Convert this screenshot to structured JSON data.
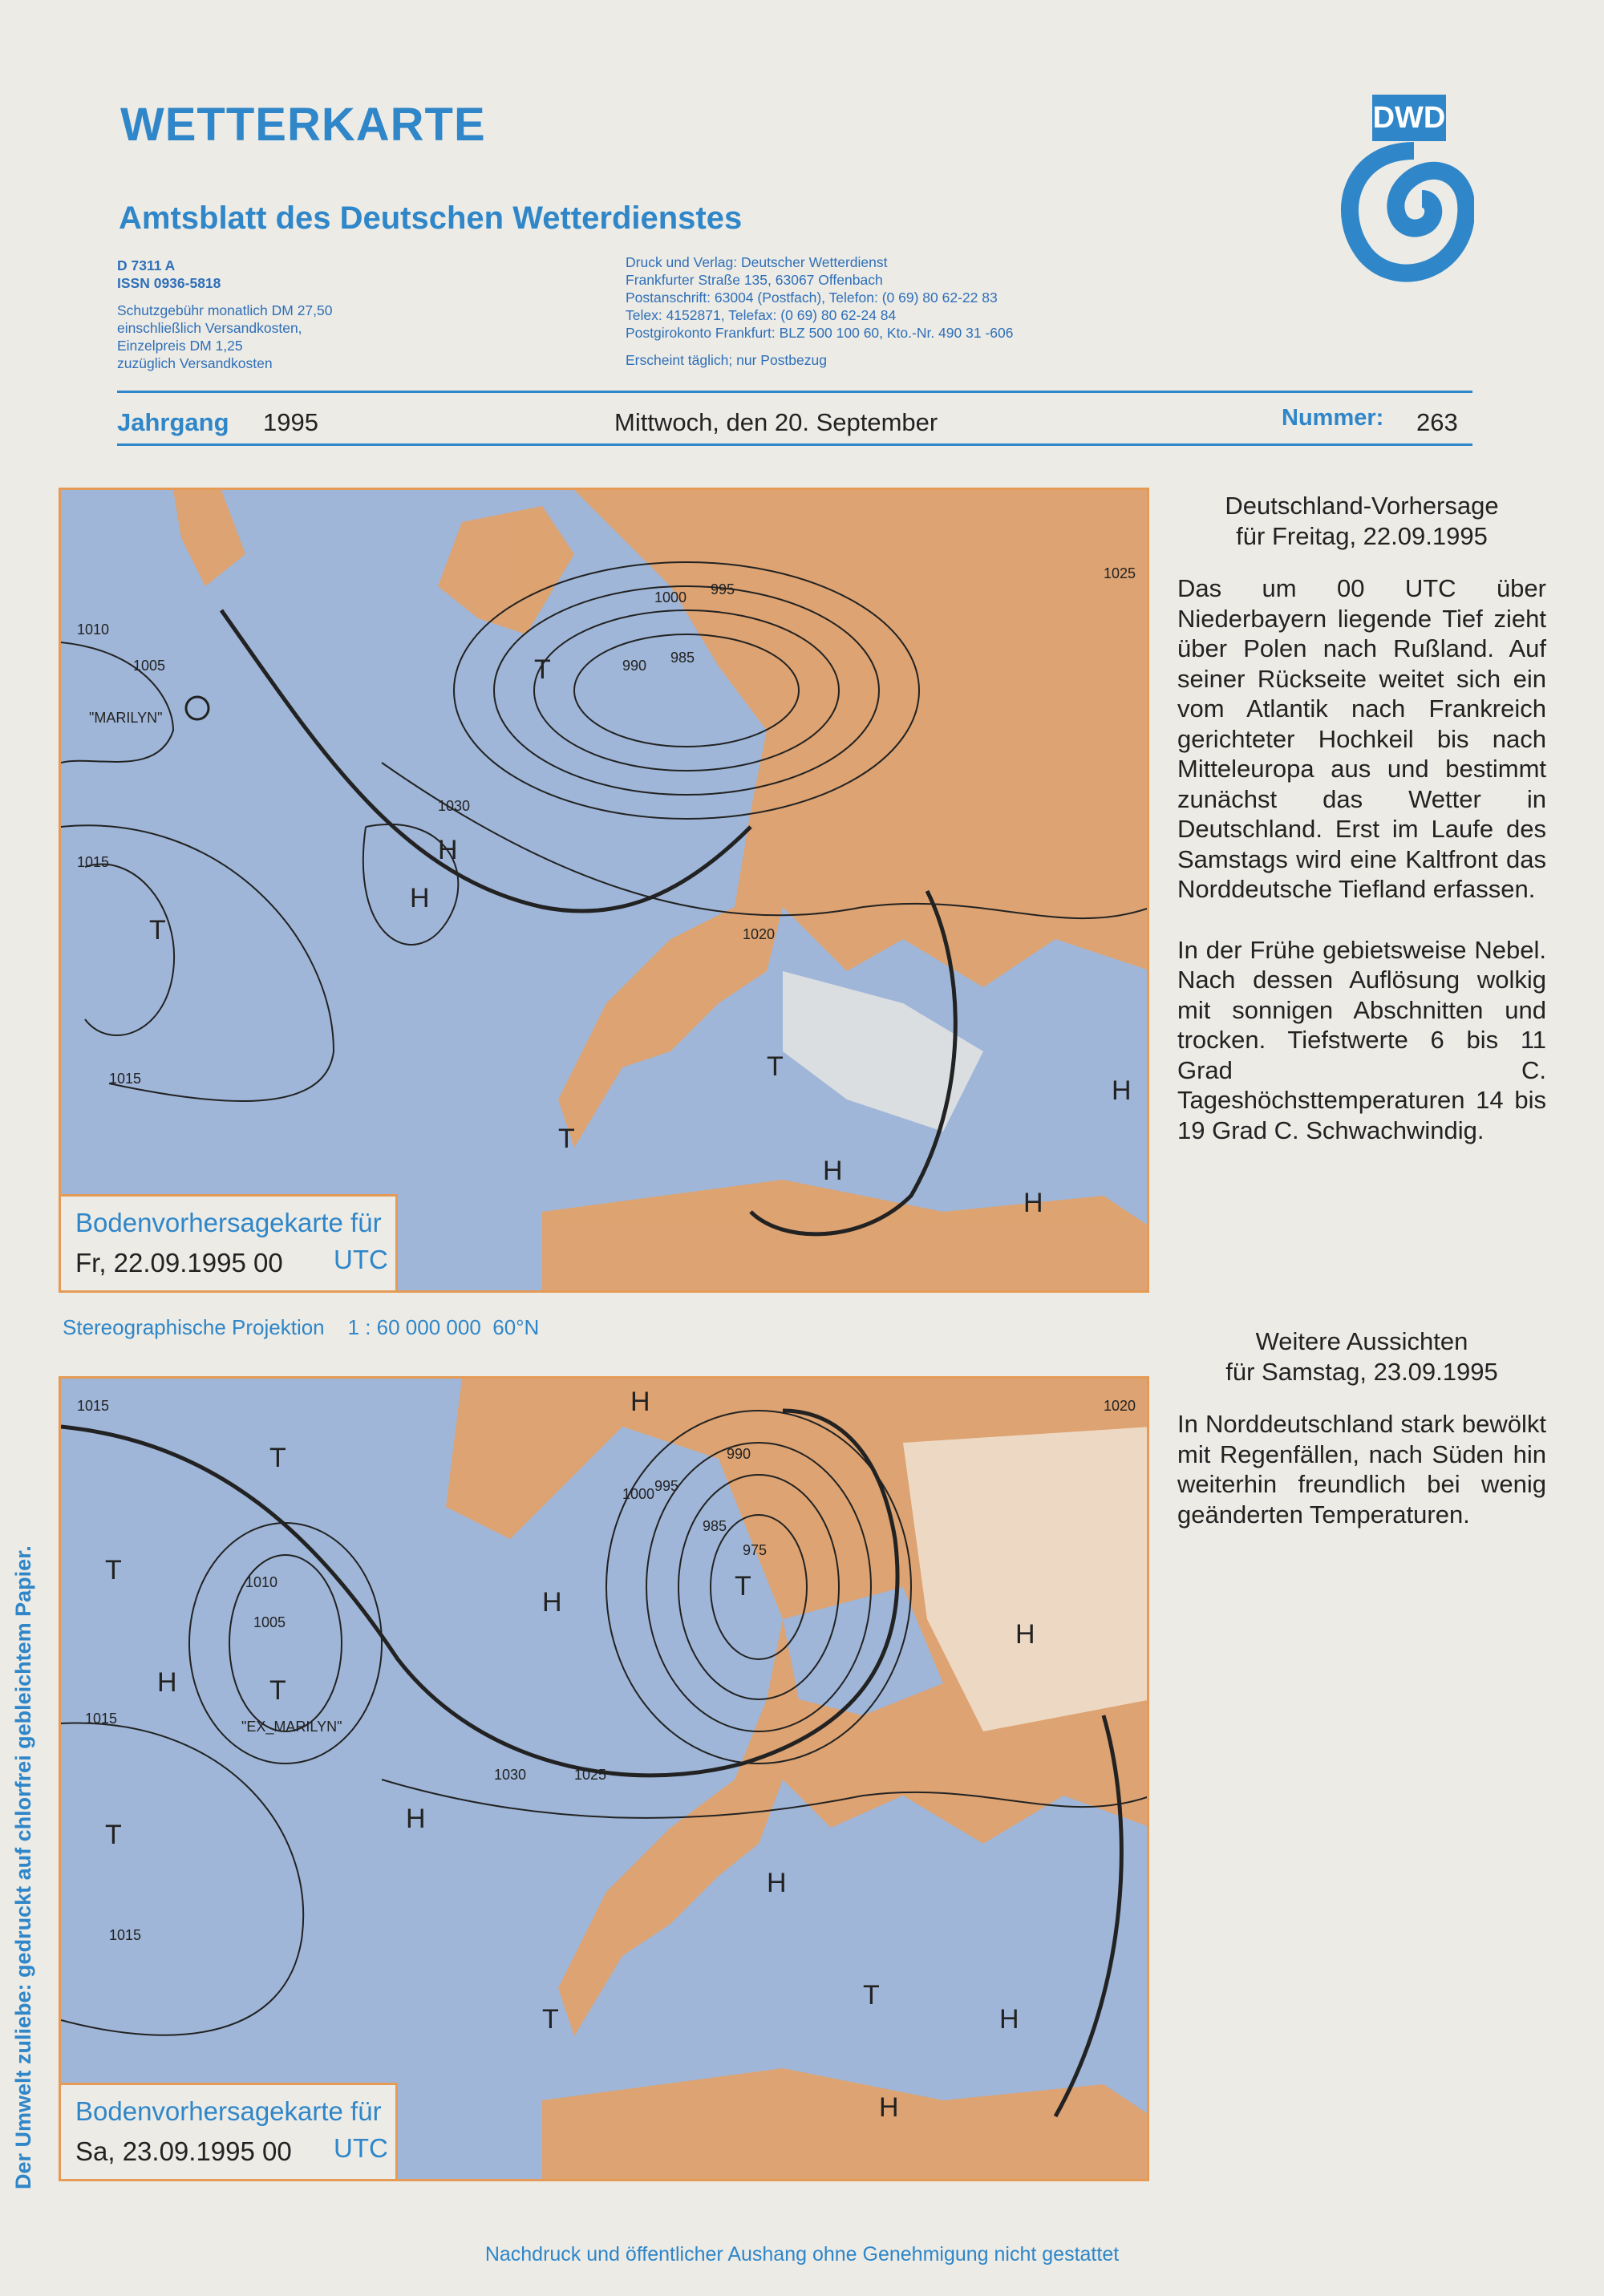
{
  "header": {
    "title": "WETTERKARTE",
    "subtitle": "Amtsblatt des Deutschen Wetterdienstes",
    "logo_text": "DWD",
    "left_info": [
      "D 7311 A",
      "ISSN 0936-5818",
      "Schutzgebühr monatlich DM 27,50",
      "einschließlich Versandkosten,",
      "Einzelpreis DM 1,25",
      "zuzüglich Versandkosten"
    ],
    "right_info": [
      "Druck und Verlag: Deutscher Wetterdienst",
      "Frankfurter Straße 135, 63067 Offenbach",
      "Postanschrift: 63004 (Postfach), Telefon: (0 69) 80 62-22 83",
      "Telex: 4152871, Telefax: (0 69) 80 62-24 84",
      "Postgirokonto Frankfurt: BLZ 500 100 60, Kto.-Nr. 490 31 -606",
      "Erscheint täglich; nur Postbezug"
    ],
    "jahrgang_label": "Jahrgang",
    "jahrgang": "1995",
    "date": "Mittwoch, den 20. September",
    "nummer_label": "Nummer:",
    "nummer": "263"
  },
  "maps": [
    {
      "caption_title": "Bodenvorhersagekarte für",
      "caption_date": "Fr, 22.09.1995 00",
      "caption_unit": "UTC",
      "labels": [
        "\"MARILYN\"",
        "1015",
        "1010",
        "1005",
        "1000",
        "995",
        "990",
        "985",
        "1030",
        "1020",
        "1025",
        "H",
        "T"
      ]
    },
    {
      "caption_title": "Bodenvorhersagekarte für",
      "caption_date": "Sa, 23.09.1995 00",
      "caption_unit": "UTC",
      "labels": [
        "\"EX_MARILYN\"",
        "1015",
        "1010",
        "1005",
        "1000",
        "995",
        "990",
        "985",
        "975",
        "1030",
        "1025",
        "1020",
        "H",
        "T"
      ]
    }
  ],
  "projection": "Stereographische Projektion    1 : 60 000 000  60°N",
  "forecast": {
    "heading1": "Deutschland-Vorhersage",
    "heading2": "für Freitag, 22.09.1995",
    "para1": "Das um 00 UTC über Niederbayern liegende Tief zieht über Polen nach Rußland. Auf seiner Rückseite weitet sich ein vom Atlantik nach Frankreich gerichteter Hochkeil bis nach Mitteleuropa aus und bestimmt zunächst das Wetter in Deutschland. Erst im Laufe des Samstags wird eine Kaltfront das Norddeutsche Tiefland erfassen.",
    "para2": "In der Frühe gebietsweise Nebel. Nach dessen Auflösung wolkig mit sonnigen Abschnitten und trocken. Tiefstwerte 6 bis 11 Grad C. Tageshöchsttemperaturen 14 bis 19 Grad C. Schwachwindig."
  },
  "outlook": {
    "heading1": "Weitere Aussichten",
    "heading2": "für Samstag, 23.09.1995",
    "para1": "In Norddeutschland stark bewölkt mit Regenfällen, nach Süden hin weiterhin freundlich bei wenig geänderten Temperaturen."
  },
  "side_note": "Der Umwelt zuliebe: gedruckt auf chlorfrei gebleichtem Papier.",
  "footer": "Nachdruck und öffentlicher Aushang ohne Genehmigung nicht gestattet",
  "colors": {
    "brand_blue": "#2f86c8",
    "sea": "#9fb6d8",
    "land": "#e8a060",
    "frame": "#e59a55"
  }
}
